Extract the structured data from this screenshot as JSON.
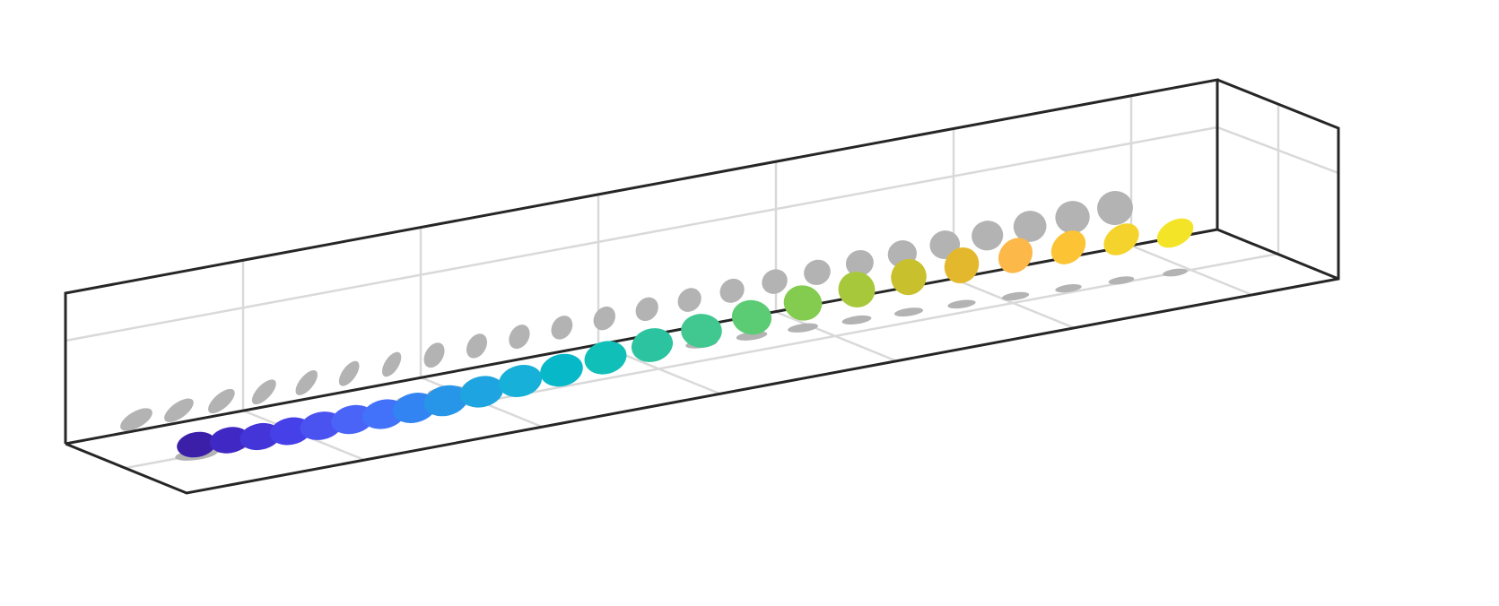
{
  "disc_colors": [
    "#3b1fa8",
    "#3f28c4",
    "#4335d8",
    "#4640e8",
    "#4a52f0",
    "#4a64f8",
    "#4272fa",
    "#3284f2",
    "#2796e8",
    "#1ea4e0",
    "#16b0d8",
    "#06b8c8",
    "#10c0b8",
    "#2cc4a0",
    "#40c890",
    "#5ccc74",
    "#84cc50",
    "#a8c83c",
    "#c8c02c",
    "#e4b82c",
    "#fcb848",
    "#fcc434",
    "#f4d42c",
    "#f4e428"
  ],
  "shadow_color": "#b3b3b3"
}
